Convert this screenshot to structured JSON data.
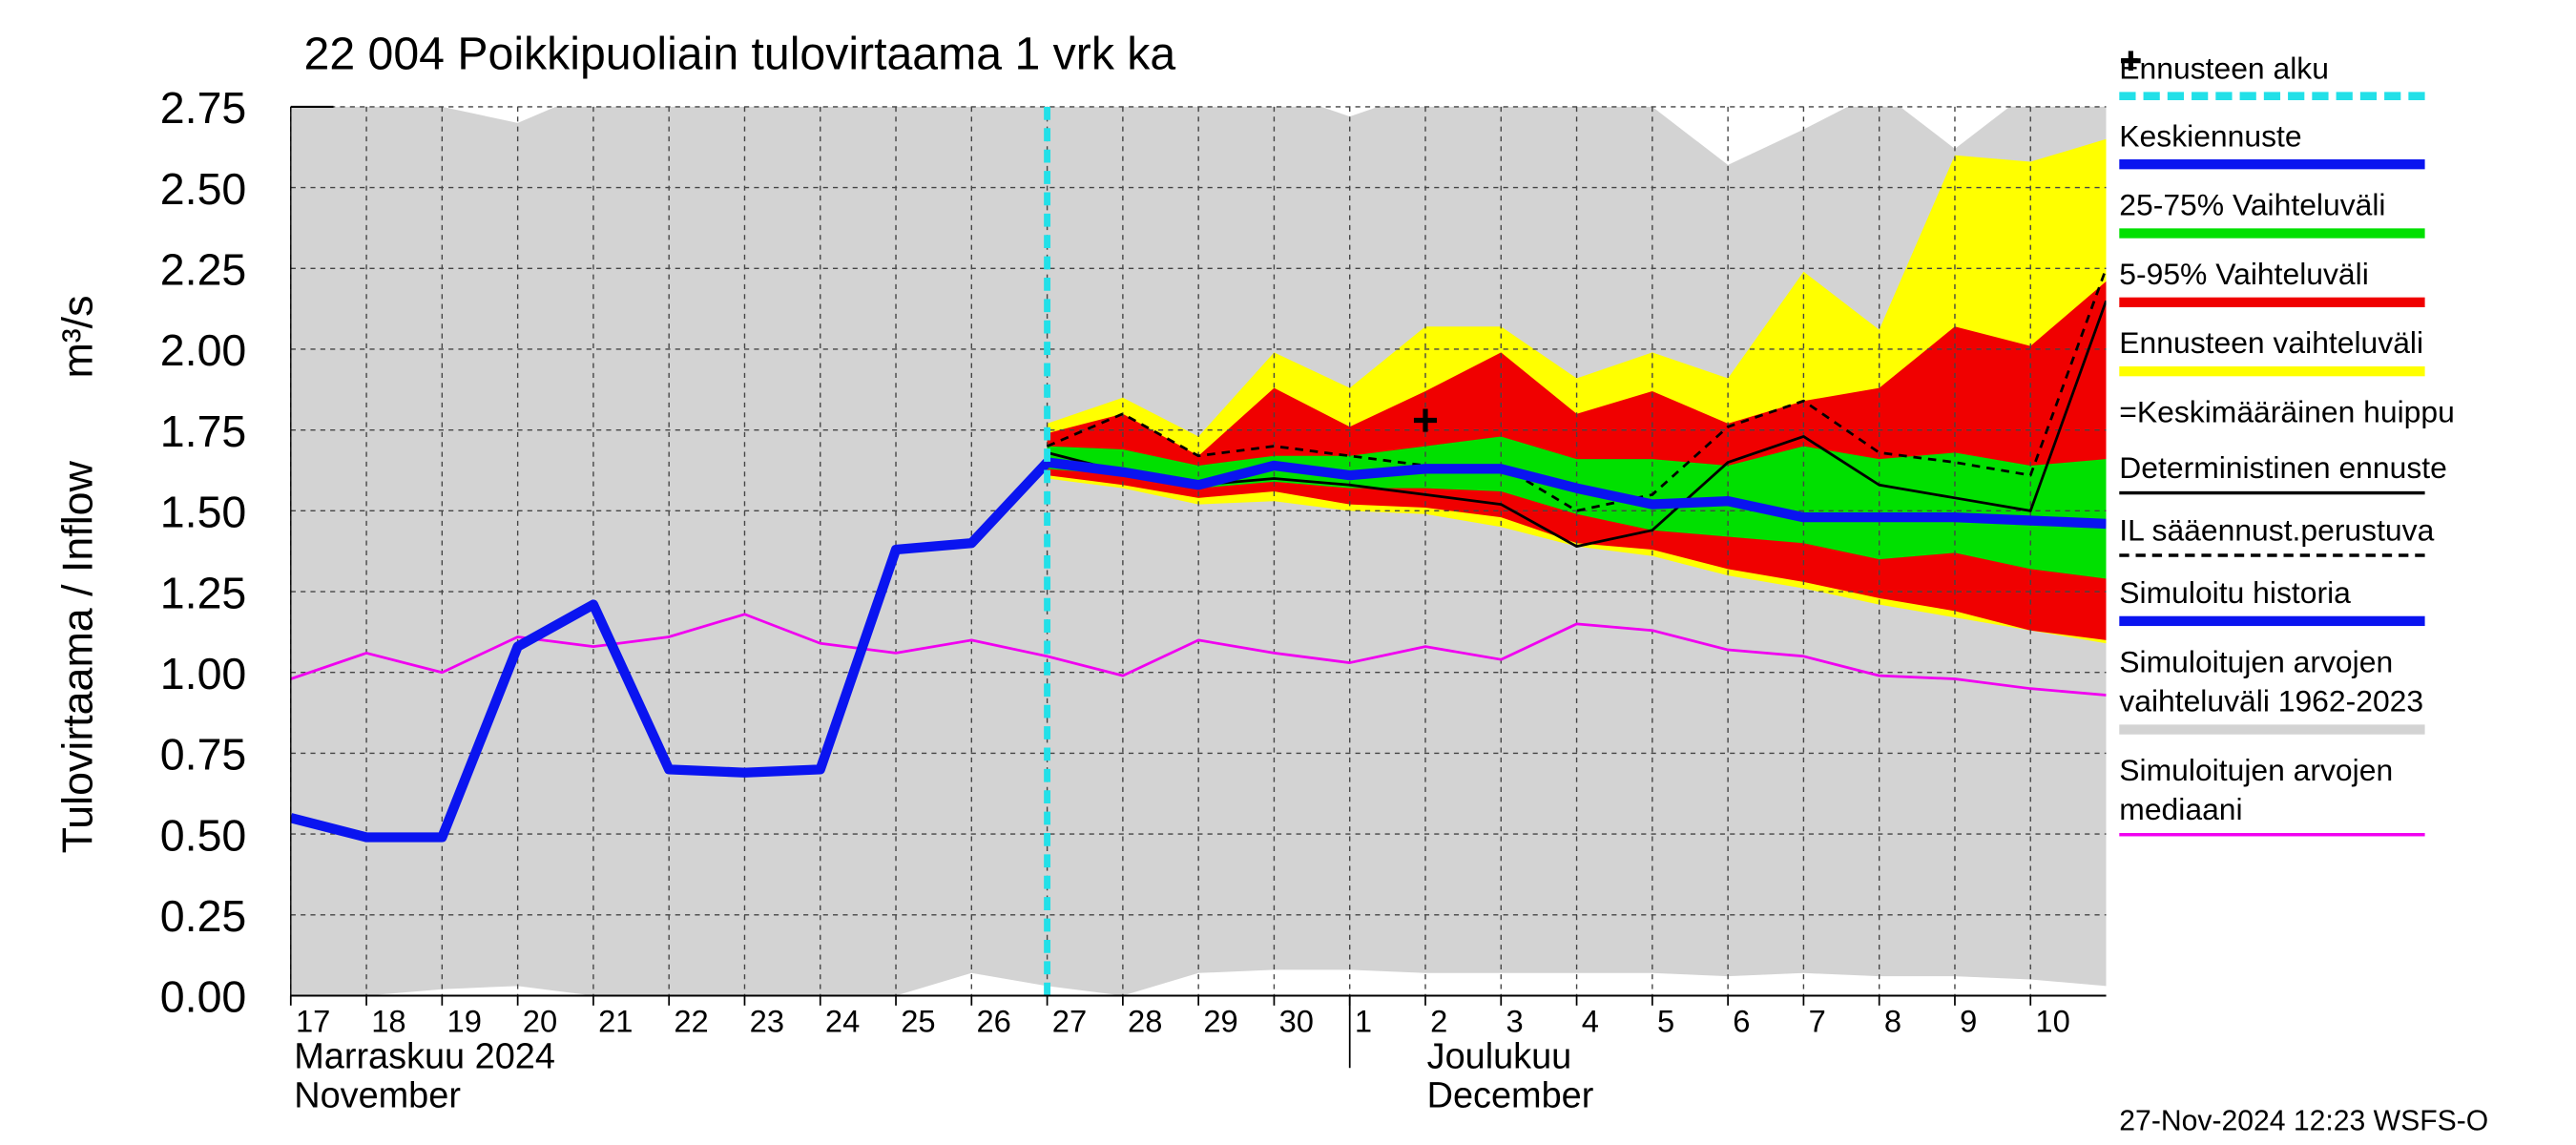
{
  "chart_data": {
    "type": "line",
    "title": "22 004 Poikkipuoliain tulovirtaama 1 vrk ka",
    "ylabel": "Tulovirtaama / Inflow",
    "yunit": "m³/s",
    "timestamp": "27-Nov-2024 12:23 WSFS-O",
    "x": [
      "2024-11-17",
      "2024-11-18",
      "2024-11-19",
      "2024-11-20",
      "2024-11-21",
      "2024-11-22",
      "2024-11-23",
      "2024-11-24",
      "2024-11-25",
      "2024-11-26",
      "2024-11-27",
      "2024-11-28",
      "2024-11-29",
      "2024-11-30",
      "2024-12-01",
      "2024-12-02",
      "2024-12-03",
      "2024-12-04",
      "2024-12-05",
      "2024-12-06",
      "2024-12-07",
      "2024-12-08",
      "2024-12-09",
      "2024-12-10",
      "2024-12-11"
    ],
    "xlim": [
      "2024-11-17",
      "2024-12-11"
    ],
    "xticks": [
      {
        "value": "2024-11-17",
        "label": "17"
      },
      {
        "value": "2024-11-18",
        "label": "18"
      },
      {
        "value": "2024-11-19",
        "label": "19"
      },
      {
        "value": "2024-11-20",
        "label": "20"
      },
      {
        "value": "2024-11-21",
        "label": "21"
      },
      {
        "value": "2024-11-22",
        "label": "22"
      },
      {
        "value": "2024-11-23",
        "label": "23"
      },
      {
        "value": "2024-11-24",
        "label": "24"
      },
      {
        "value": "2024-11-25",
        "label": "25"
      },
      {
        "value": "2024-11-26",
        "label": "26"
      },
      {
        "value": "2024-11-27",
        "label": "27"
      },
      {
        "value": "2024-11-28",
        "label": "28"
      },
      {
        "value": "2024-11-29",
        "label": "29"
      },
      {
        "value": "2024-11-30",
        "label": "30"
      },
      {
        "value": "2024-12-01",
        "label": "1"
      },
      {
        "value": "2024-12-02",
        "label": "2"
      },
      {
        "value": "2024-12-03",
        "label": "3"
      },
      {
        "value": "2024-12-04",
        "label": "4"
      },
      {
        "value": "2024-12-05",
        "label": "5"
      },
      {
        "value": "2024-12-06",
        "label": "6"
      },
      {
        "value": "2024-12-07",
        "label": "7"
      },
      {
        "value": "2024-12-08",
        "label": "8"
      },
      {
        "value": "2024-12-09",
        "label": "9"
      },
      {
        "value": "2024-12-10",
        "label": "10"
      }
    ],
    "months": [
      {
        "name": "Marraskuu 2024",
        "name_en": "November"
      },
      {
        "name": "Joulukuu",
        "name_en": "December",
        "start": "2024-12-01"
      }
    ],
    "ylim": [
      0,
      2.75
    ],
    "yticks": [
      {
        "value": 0,
        "label": "0.00"
      },
      {
        "value": 0.25,
        "label": "0.25"
      },
      {
        "value": 0.5,
        "label": "0.50"
      },
      {
        "value": 0.75,
        "label": "0.75"
      },
      {
        "value": 1,
        "label": "1.00"
      },
      {
        "value": 1.25,
        "label": "1.25"
      },
      {
        "value": 1.5,
        "label": "1.50"
      },
      {
        "value": 1.75,
        "label": "1.75"
      },
      {
        "value": 2,
        "label": "2.00"
      },
      {
        "value": 2.25,
        "label": "2.25"
      },
      {
        "value": 2.5,
        "label": "2.50"
      },
      {
        "value": 2.75,
        "label": "2.75"
      }
    ],
    "grid": true,
    "series": [
      {
        "name": "Ennusteen alku",
        "color": "#22e0e8",
        "style": "vline",
        "x": "2024-11-27"
      },
      {
        "name": "Keskiennuste",
        "color": "#0a14f0",
        "style": "thick",
        "values": [
          null,
          null,
          null,
          null,
          null,
          null,
          null,
          null,
          null,
          null,
          1.65,
          1.62,
          1.58,
          1.64,
          1.61,
          1.63,
          1.63,
          1.57,
          1.52,
          1.53,
          1.48,
          1.48,
          1.48,
          1.47,
          1.46
        ]
      },
      {
        "name": "25-75% Vaihteluväli",
        "color": "#00e000",
        "style": "band",
        "upper": [
          null,
          null,
          null,
          null,
          null,
          null,
          null,
          null,
          null,
          null,
          1.7,
          1.69,
          1.64,
          1.67,
          1.67,
          1.7,
          1.73,
          1.66,
          1.66,
          1.64,
          1.7,
          1.66,
          1.68,
          1.64,
          1.66
        ],
        "lower": [
          null,
          null,
          null,
          null,
          null,
          null,
          null,
          null,
          null,
          null,
          1.63,
          1.61,
          1.57,
          1.59,
          1.57,
          1.57,
          1.56,
          1.49,
          1.44,
          1.42,
          1.4,
          1.35,
          1.37,
          1.32,
          1.29
        ]
      },
      {
        "name": "5-95% Vaihteluväli",
        "color": "#f00000",
        "style": "band",
        "upper": [
          null,
          null,
          null,
          null,
          null,
          null,
          null,
          null,
          null,
          null,
          1.74,
          1.8,
          1.67,
          1.88,
          1.76,
          1.87,
          1.99,
          1.8,
          1.87,
          1.77,
          1.84,
          1.88,
          2.07,
          2.01,
          2.21
        ],
        "lower": [
          null,
          null,
          null,
          null,
          null,
          null,
          null,
          null,
          null,
          null,
          1.61,
          1.58,
          1.54,
          1.56,
          1.52,
          1.51,
          1.48,
          1.4,
          1.38,
          1.32,
          1.28,
          1.23,
          1.19,
          1.13,
          1.1
        ]
      },
      {
        "name": "Ennusteen vaihteluväli",
        "color": "#ffff00",
        "style": "band",
        "upper": [
          null,
          null,
          null,
          null,
          null,
          null,
          null,
          null,
          null,
          null,
          1.77,
          1.85,
          1.73,
          1.99,
          1.88,
          2.07,
          2.07,
          1.91,
          1.99,
          1.91,
          2.24,
          2.06,
          2.6,
          2.58,
          2.65
        ],
        "lower": [
          null,
          null,
          null,
          null,
          null,
          null,
          null,
          null,
          null,
          null,
          1.6,
          1.57,
          1.52,
          1.53,
          1.5,
          1.49,
          1.45,
          1.39,
          1.36,
          1.3,
          1.26,
          1.21,
          1.17,
          1.13,
          1.09
        ]
      },
      {
        "name": "=Keskimääräinen huippu",
        "color": "#000000",
        "style": "marker",
        "point": {
          "x": "2024-12-02",
          "y": 1.78
        }
      },
      {
        "name": "Deterministinen ennuste",
        "color": "#000000",
        "style": "thin",
        "values": [
          null,
          null,
          null,
          null,
          null,
          null,
          null,
          null,
          null,
          null,
          1.68,
          1.62,
          1.58,
          1.6,
          1.58,
          1.55,
          1.52,
          1.39,
          1.44,
          1.65,
          1.73,
          1.58,
          1.54,
          1.5,
          2.15
        ]
      },
      {
        "name": "IL sääennust.perustuva",
        "color": "#000000",
        "style": "dashed",
        "values": [
          null,
          null,
          null,
          null,
          null,
          null,
          null,
          null,
          null,
          null,
          1.7,
          1.8,
          1.67,
          1.7,
          1.67,
          1.64,
          1.64,
          1.5,
          1.55,
          1.76,
          1.84,
          1.68,
          1.65,
          1.61,
          2.25
        ]
      },
      {
        "name": "Simuloitu historia",
        "color": "#0a14f0",
        "style": "thick",
        "values": [
          0.55,
          0.49,
          0.49,
          1.08,
          1.21,
          0.7,
          0.69,
          0.7,
          1.38,
          1.4,
          1.65,
          null,
          null,
          null,
          null,
          null,
          null,
          null,
          null,
          null,
          null,
          null,
          null,
          null,
          null
        ]
      },
      {
        "name": "Simuloitujen arvojen vaihteluväli 1962-2023",
        "color": "#d3d3d3",
        "style": "band",
        "upper": [
          2.8,
          2.8,
          2.75,
          2.7,
          2.8,
          2.8,
          2.8,
          2.8,
          2.8,
          2.8,
          2.8,
          2.8,
          2.8,
          2.8,
          2.72,
          2.8,
          2.8,
          2.8,
          2.75,
          2.57,
          2.68,
          2.8,
          2.62,
          2.8,
          2.8
        ],
        "lower": [
          0,
          0,
          0.02,
          0.03,
          0,
          0,
          0,
          0,
          0,
          0.07,
          0.03,
          0,
          0.07,
          0.08,
          0.08,
          0.07,
          0.07,
          0.07,
          0.07,
          0.06,
          0.07,
          0.06,
          0.06,
          0.05,
          0.03
        ]
      },
      {
        "name": "Simuloitujen arvojen mediaani",
        "color": "#f000f0",
        "style": "thin",
        "values": [
          0.98,
          1.06,
          1.0,
          1.11,
          1.08,
          1.11,
          1.18,
          1.09,
          1.06,
          1.1,
          1.05,
          0.99,
          1.1,
          1.06,
          1.03,
          1.08,
          1.04,
          1.15,
          1.13,
          1.07,
          1.05,
          0.99,
          0.98,
          0.95,
          0.93
        ]
      }
    ]
  }
}
